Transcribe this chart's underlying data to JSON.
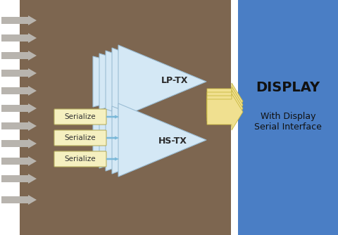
{
  "bg_color": "#ffffff",
  "main_block_color": "#7d6650",
  "blue_block_color": "#4a7ec5",
  "arrow_gray_color": "#b8b4ae",
  "triangle_fill": "#d4e8f5",
  "triangle_edge": "#9bbdd4",
  "serialize_fill": "#f5f0c0",
  "serialize_edge": "#b8b060",
  "big_arrow_fill": "#f0e090",
  "big_arrow_edge": "#c8b840",
  "display_text": "DISPLAY",
  "sub_text1": "With Display",
  "sub_text2": "Serial Interface",
  "lptx_text": "LP-TX",
  "hstx_text": "HS-TX",
  "serialize_text": "Serialize",
  "display_text_color": "#111111",
  "sub_text_color": "#111111",
  "small_arrow_color": "#7ab8d8"
}
